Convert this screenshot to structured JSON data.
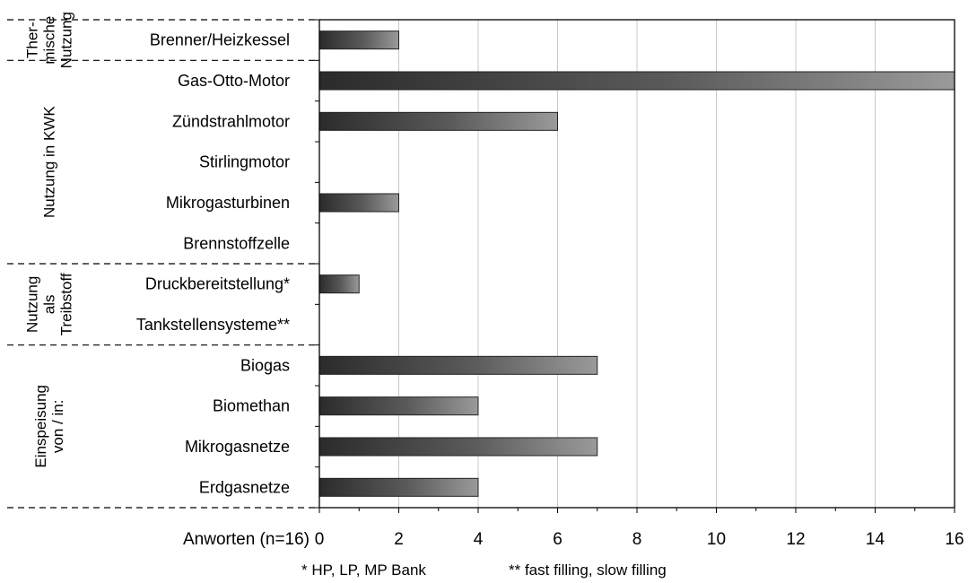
{
  "chart_data": {
    "type": "bar",
    "orientation": "horizontal",
    "categories": [
      "Brenner/Heizkessel",
      "Gas-Otto-Motor",
      "Zündstrahlmotor",
      "Stirlingmotor",
      "Mikrogasturbinen",
      "Brennstoffzelle",
      "Druckbereitstellung*",
      "Tankstellensysteme**",
      "Biogas",
      "Biomethan",
      "Mikrogasnetze",
      "Erdgasnetze"
    ],
    "values": [
      2,
      16,
      6,
      0,
      2,
      0,
      1,
      0,
      7,
      4,
      7,
      4
    ],
    "xlim": [
      0,
      16
    ],
    "xticks": [
      "0",
      "2",
      "4",
      "6",
      "8",
      "10",
      "12",
      "14",
      "16"
    ],
    "xlabel": "Anworten (n=16)",
    "grid": "vertical",
    "groups": [
      {
        "lines": [
          "Ther-",
          "mische",
          "Nutzung"
        ],
        "start": 0,
        "count": 1
      },
      {
        "lines": [
          "Nutzung in KWK"
        ],
        "start": 1,
        "count": 5
      },
      {
        "lines": [
          "Nutzung",
          "als",
          "Treibstoff"
        ],
        "start": 6,
        "count": 2
      },
      {
        "lines": [
          "Einspeisung",
          "von / in:"
        ],
        "start": 8,
        "count": 4
      }
    ],
    "footnotes": [
      "*  HP, LP, MP Bank",
      "** fast filling, slow filling"
    ]
  }
}
